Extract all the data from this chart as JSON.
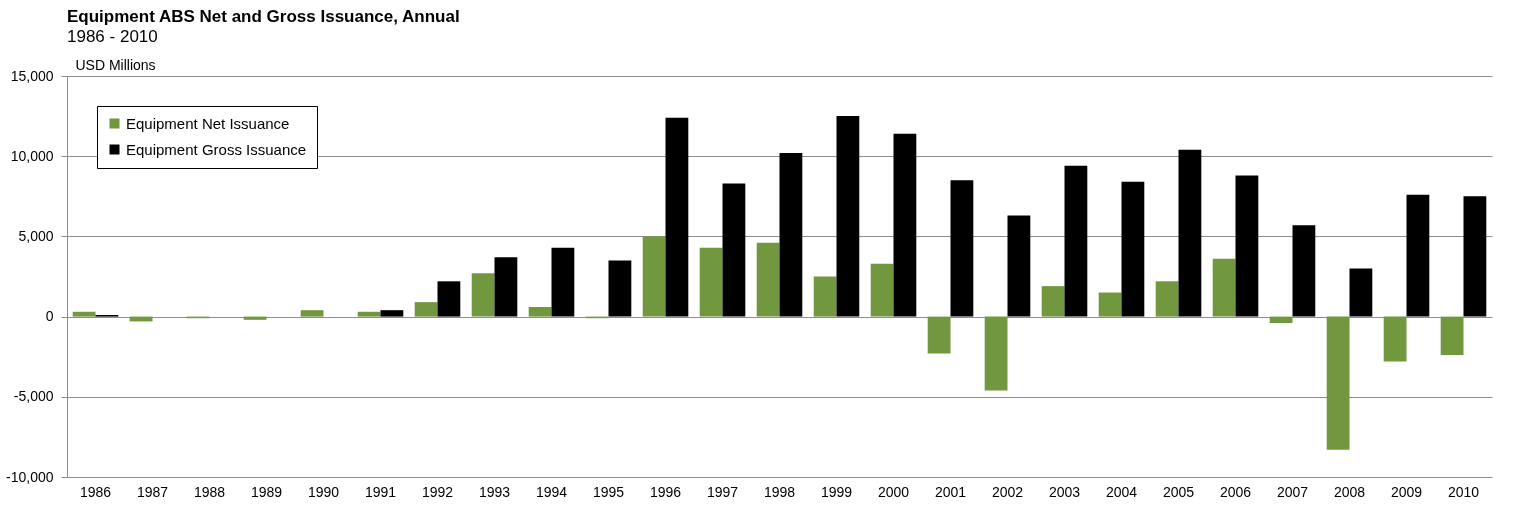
{
  "chart_data": {
    "type": "bar",
    "title": "Equipment ABS Net and Gross Issuance, Annual",
    "subtitle": "1986 - 2010",
    "ylabel": "USD Millions",
    "categories": [
      "1986",
      "1987",
      "1988",
      "1989",
      "1990",
      "1991",
      "1992",
      "1993",
      "1994",
      "1995",
      "1996",
      "1997",
      "1998",
      "1999",
      "2000",
      "2001",
      "2002",
      "2003",
      "2004",
      "2005",
      "2006",
      "2007",
      "2008",
      "2009",
      "2010"
    ],
    "series": [
      {
        "name": "Equipment Net Issuance",
        "color": "#71973f",
        "values": [
          300,
          -300,
          -100,
          -200,
          400,
          300,
          900,
          2700,
          600,
          -100,
          5000,
          4300,
          4600,
          2500,
          3300,
          -2300,
          -4600,
          1900,
          1500,
          2200,
          3600,
          -400,
          -8300,
          -2800,
          -2400
        ]
      },
      {
        "name": "Equipment Gross Issuance",
        "color": "#000000",
        "values": [
          100,
          0,
          0,
          0,
          0,
          400,
          2200,
          3700,
          4300,
          3500,
          12400,
          8300,
          10200,
          12500,
          11400,
          8500,
          6300,
          9400,
          8400,
          10400,
          8800,
          5700,
          3000,
          7600,
          7500
        ]
      }
    ],
    "ylim": [
      -10000,
      15000
    ],
    "yticks": [
      {
        "value": -10000,
        "label": "-10,000"
      },
      {
        "value": -5000,
        "label": "-5,000"
      },
      0,
      {
        "value": 5000,
        "label": "5,000"
      },
      {
        "value": 10000,
        "label": "10,000"
      },
      {
        "value": 15000,
        "label": "15,000"
      }
    ],
    "grid": "y",
    "legend": "top left"
  }
}
